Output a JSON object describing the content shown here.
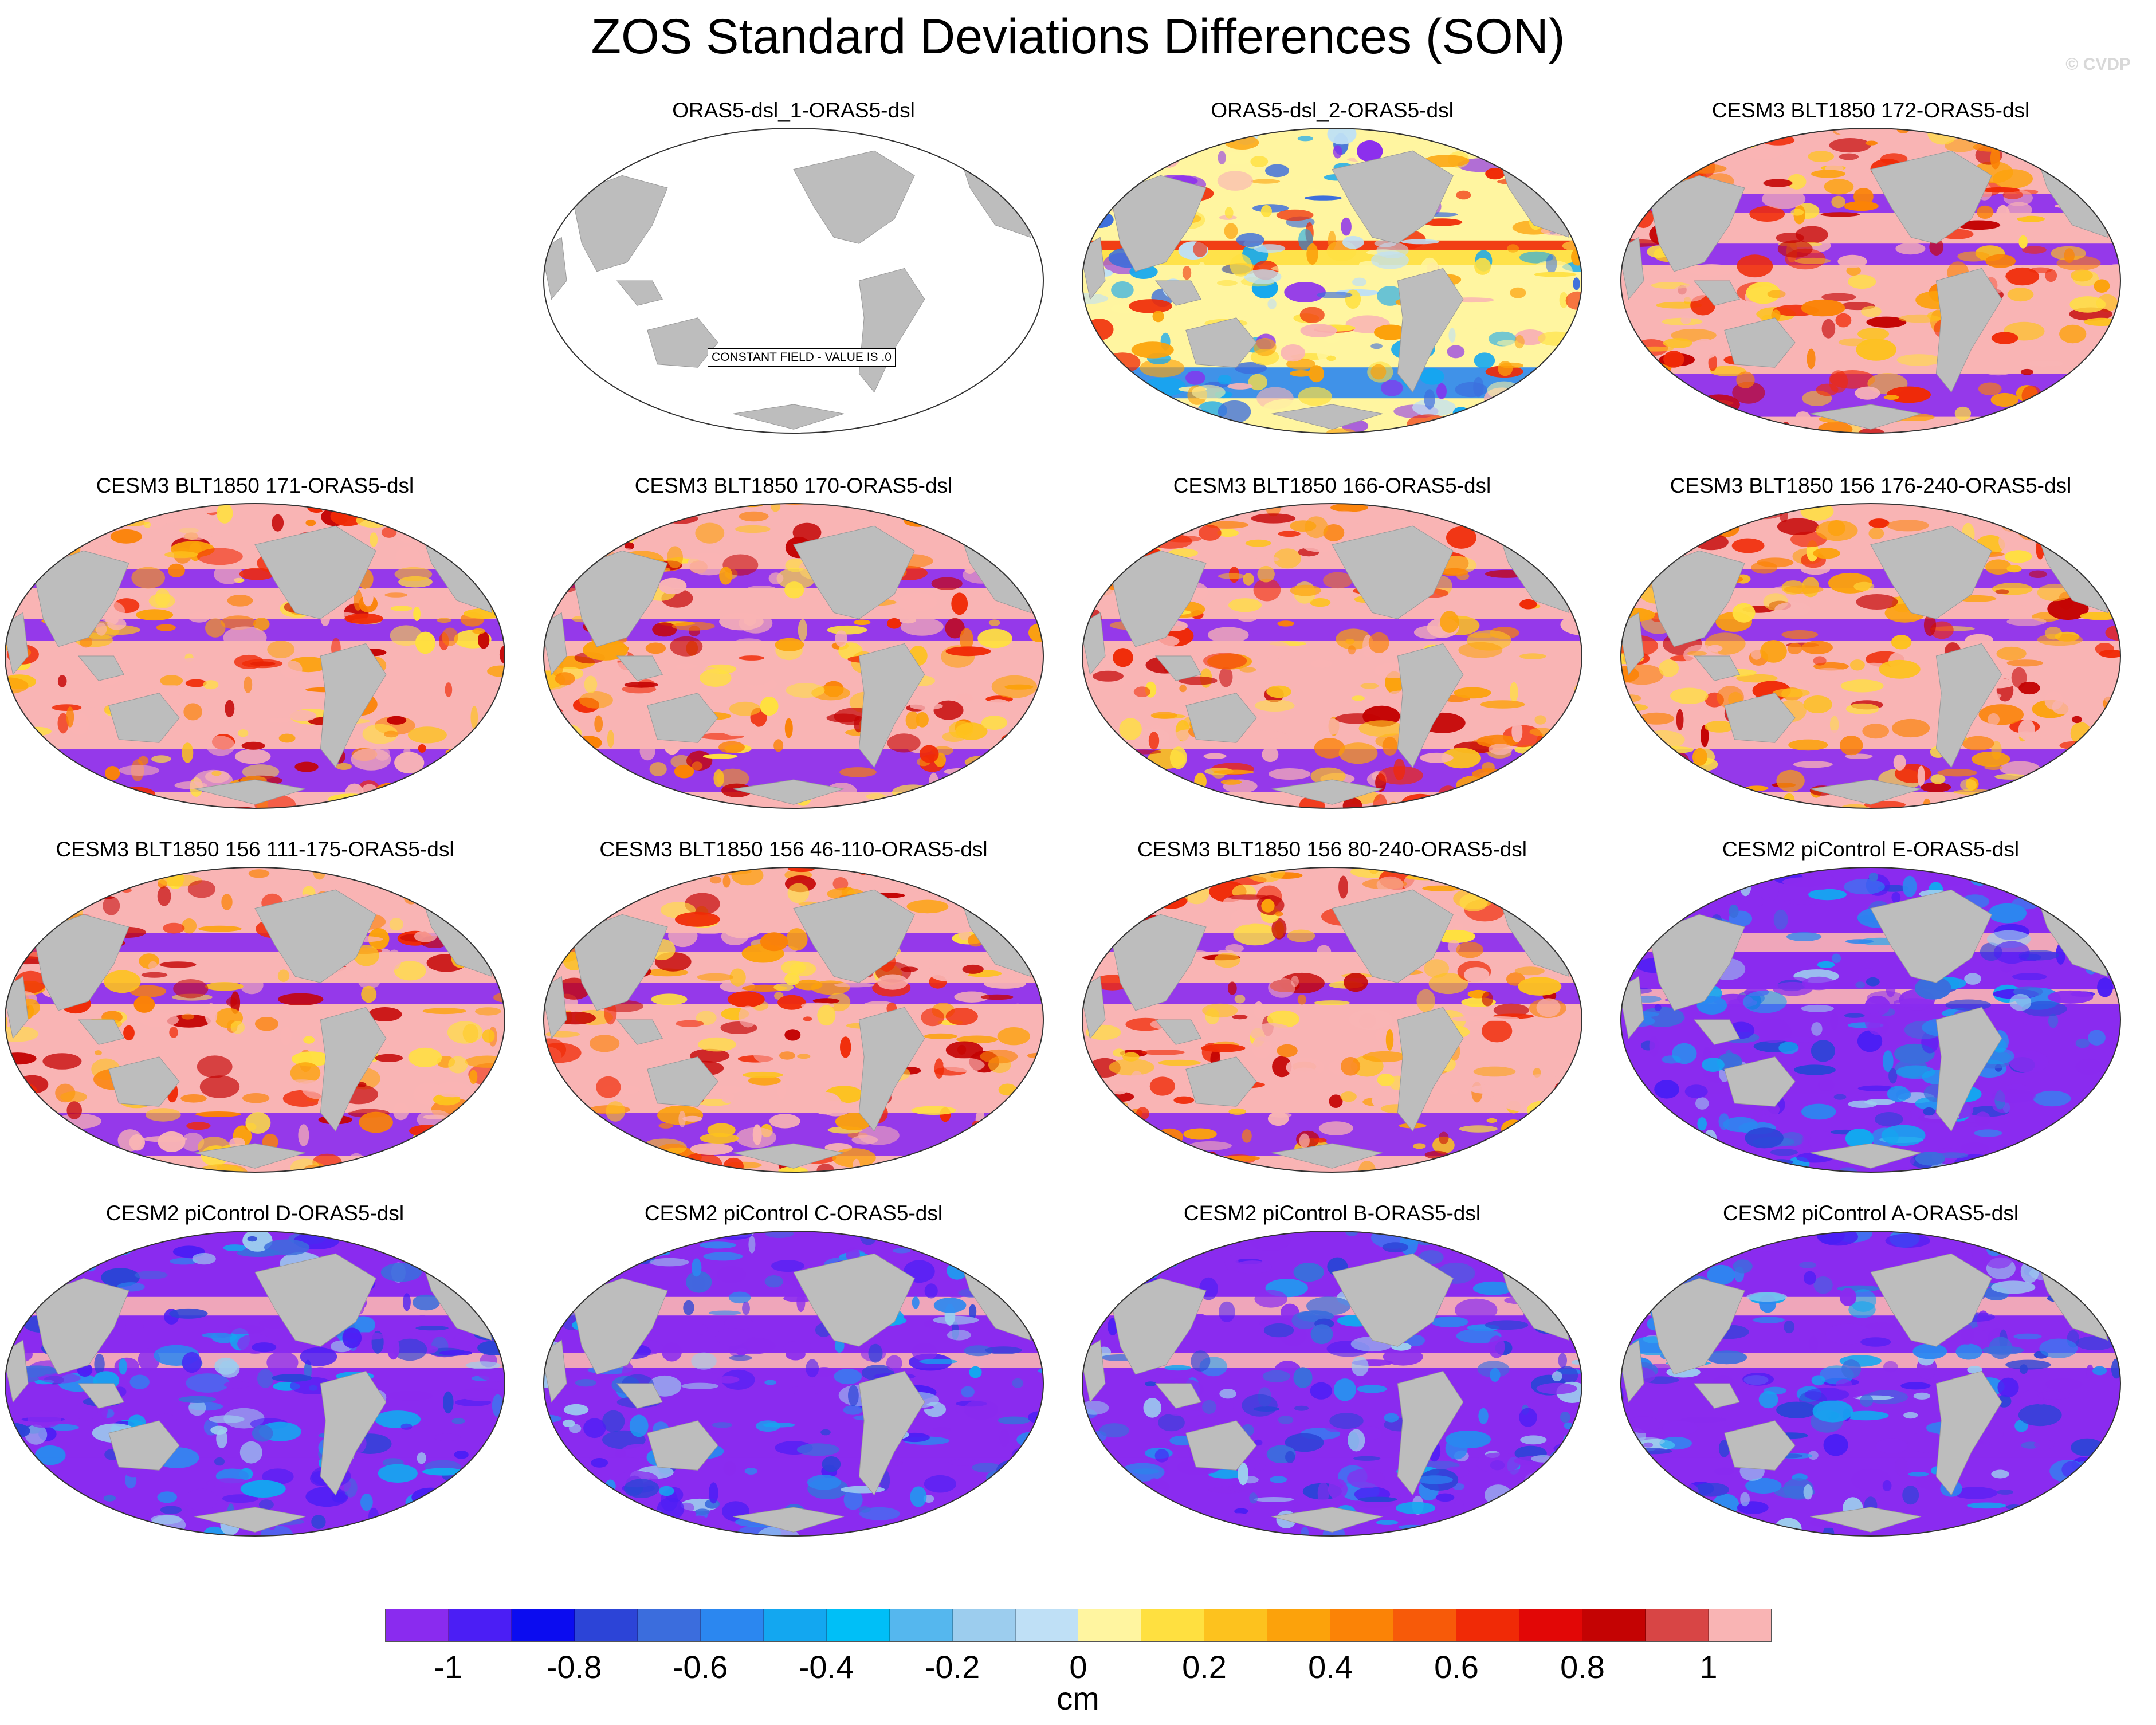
{
  "title": "ZOS Standard Deviations Differences (SON)",
  "credit": "© CVDP",
  "panels": [
    {
      "label": "ORAS5-dsl_1-ORAS5-dsl",
      "constant_field": "CONSTANT FIELD - VALUE IS .0"
    },
    {
      "label": "ORAS5-dsl_2-ORAS5-dsl"
    },
    {
      "label": "CESM3 BLT1850 172-ORAS5-dsl"
    },
    {
      "label": "CESM3 BLT1850 171-ORAS5-dsl"
    },
    {
      "label": "CESM3 BLT1850 170-ORAS5-dsl"
    },
    {
      "label": "CESM3 BLT1850 166-ORAS5-dsl"
    },
    {
      "label": "CESM3 BLT1850 156 176-240-ORAS5-dsl"
    },
    {
      "label": "CESM3 BLT1850 156 111-175-ORAS5-dsl"
    },
    {
      "label": "CESM3 BLT1850 156 46-110-ORAS5-dsl"
    },
    {
      "label": "CESM3 BLT1850 156 80-240-ORAS5-dsl"
    },
    {
      "label": "CESM2 piControl E-ORAS5-dsl"
    },
    {
      "label": "CESM2 piControl D-ORAS5-dsl"
    },
    {
      "label": "CESM2 piControl C-ORAS5-dsl"
    },
    {
      "label": "CESM2 piControl B-ORAS5-dsl"
    },
    {
      "label": "CESM2 piControl A-ORAS5-dsl"
    }
  ],
  "colorbar": {
    "units": "cm",
    "colors": [
      "#8a2bef",
      "#4b1ef5",
      "#0b0cf0",
      "#2c44d7",
      "#3b6ddd",
      "#2b87f0",
      "#13a7f0",
      "#00bff7",
      "#55b7ee",
      "#9ccdee",
      "#bfe0f6",
      "#fff5a0",
      "#ffe040",
      "#fdc21e",
      "#fca20b",
      "#fb8306",
      "#f75a09",
      "#f02a06",
      "#e20706",
      "#c40303",
      "#d84545",
      "#f9b4b4"
    ],
    "tick_labels": [
      "-1",
      "-0.8",
      "-0.6",
      "-0.4",
      "-0.2",
      "0",
      "0.2",
      "0.4",
      "0.6",
      "0.8",
      "1"
    ]
  },
  "colors": {
    "land": "#bdbdbd",
    "constant_ocean": "#ffffff"
  }
}
